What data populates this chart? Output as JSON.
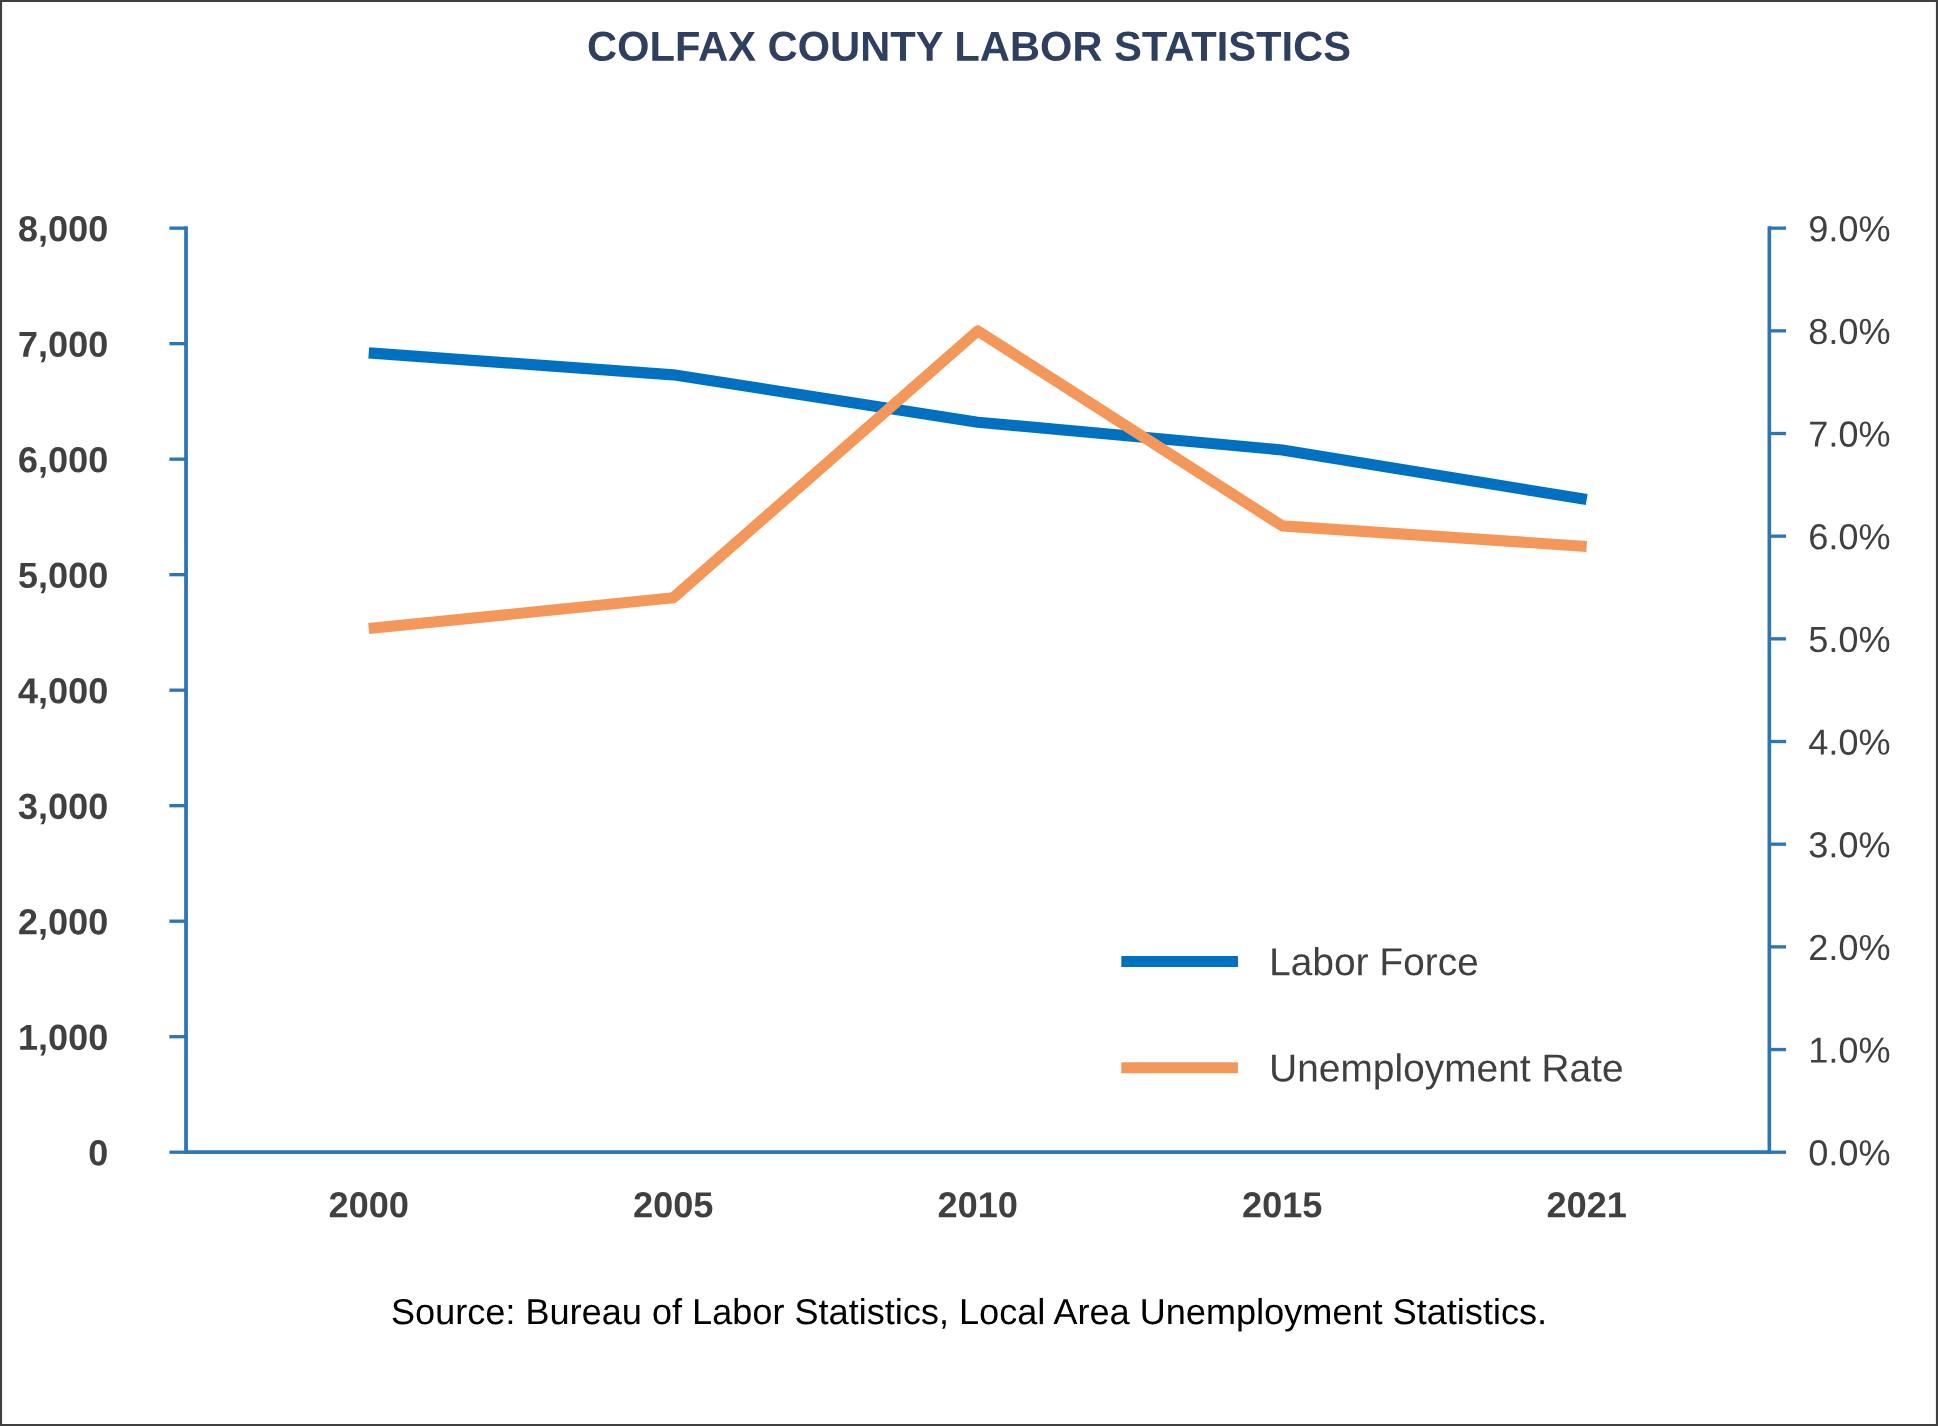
{
  "chart_data": {
    "type": "line",
    "title": "COLFAX COUNTY LABOR STATISTICS",
    "categories": [
      "2000",
      "2005",
      "2010",
      "2015",
      "2021"
    ],
    "series": [
      {
        "name": "Labor Force",
        "color": "#0070c0",
        "values": [
          6920,
          6730,
          6320,
          6080,
          5650
        ]
      },
      {
        "name": "Unemployment Rate",
        "color": "#f4975b",
        "axis": "y2",
        "values": [
          5.1,
          5.4,
          8.0,
          6.1,
          5.9
        ]
      }
    ],
    "ylim": [
      0,
      8000
    ],
    "yticks": [
      {
        "value": 0,
        "label": "0"
      },
      {
        "value": 1000,
        "label": "1,000"
      },
      {
        "value": 2000,
        "label": "2,000"
      },
      {
        "value": 3000,
        "label": "3,000"
      },
      {
        "value": 4000,
        "label": "4,000"
      },
      {
        "value": 5000,
        "label": "5,000"
      },
      {
        "value": 6000,
        "label": "6,000"
      },
      {
        "value": 7000,
        "label": "7,000"
      },
      {
        "value": 8000,
        "label": "8,000"
      }
    ],
    "y2lim": [
      0,
      9
    ],
    "y2ticks": [
      {
        "value": 0,
        "label": "0.0%"
      },
      {
        "value": 1,
        "label": "1.0%"
      },
      {
        "value": 2,
        "label": "2.0%"
      },
      {
        "value": 3,
        "label": "3.0%"
      },
      {
        "value": 4,
        "label": "4.0%"
      },
      {
        "value": 5,
        "label": "5.0%"
      },
      {
        "value": 6,
        "label": "6.0%"
      },
      {
        "value": 7,
        "label": "7.0%"
      },
      {
        "value": 8,
        "label": "8.0%"
      },
      {
        "value": 9,
        "label": "9.0%"
      }
    ],
    "legend": "lower right",
    "grid": false,
    "marker": "none",
    "line_style": "solid",
    "annotations": [
      "Source: Bureau of Labor Statistics, Local Area Unemployment Statistics."
    ]
  }
}
